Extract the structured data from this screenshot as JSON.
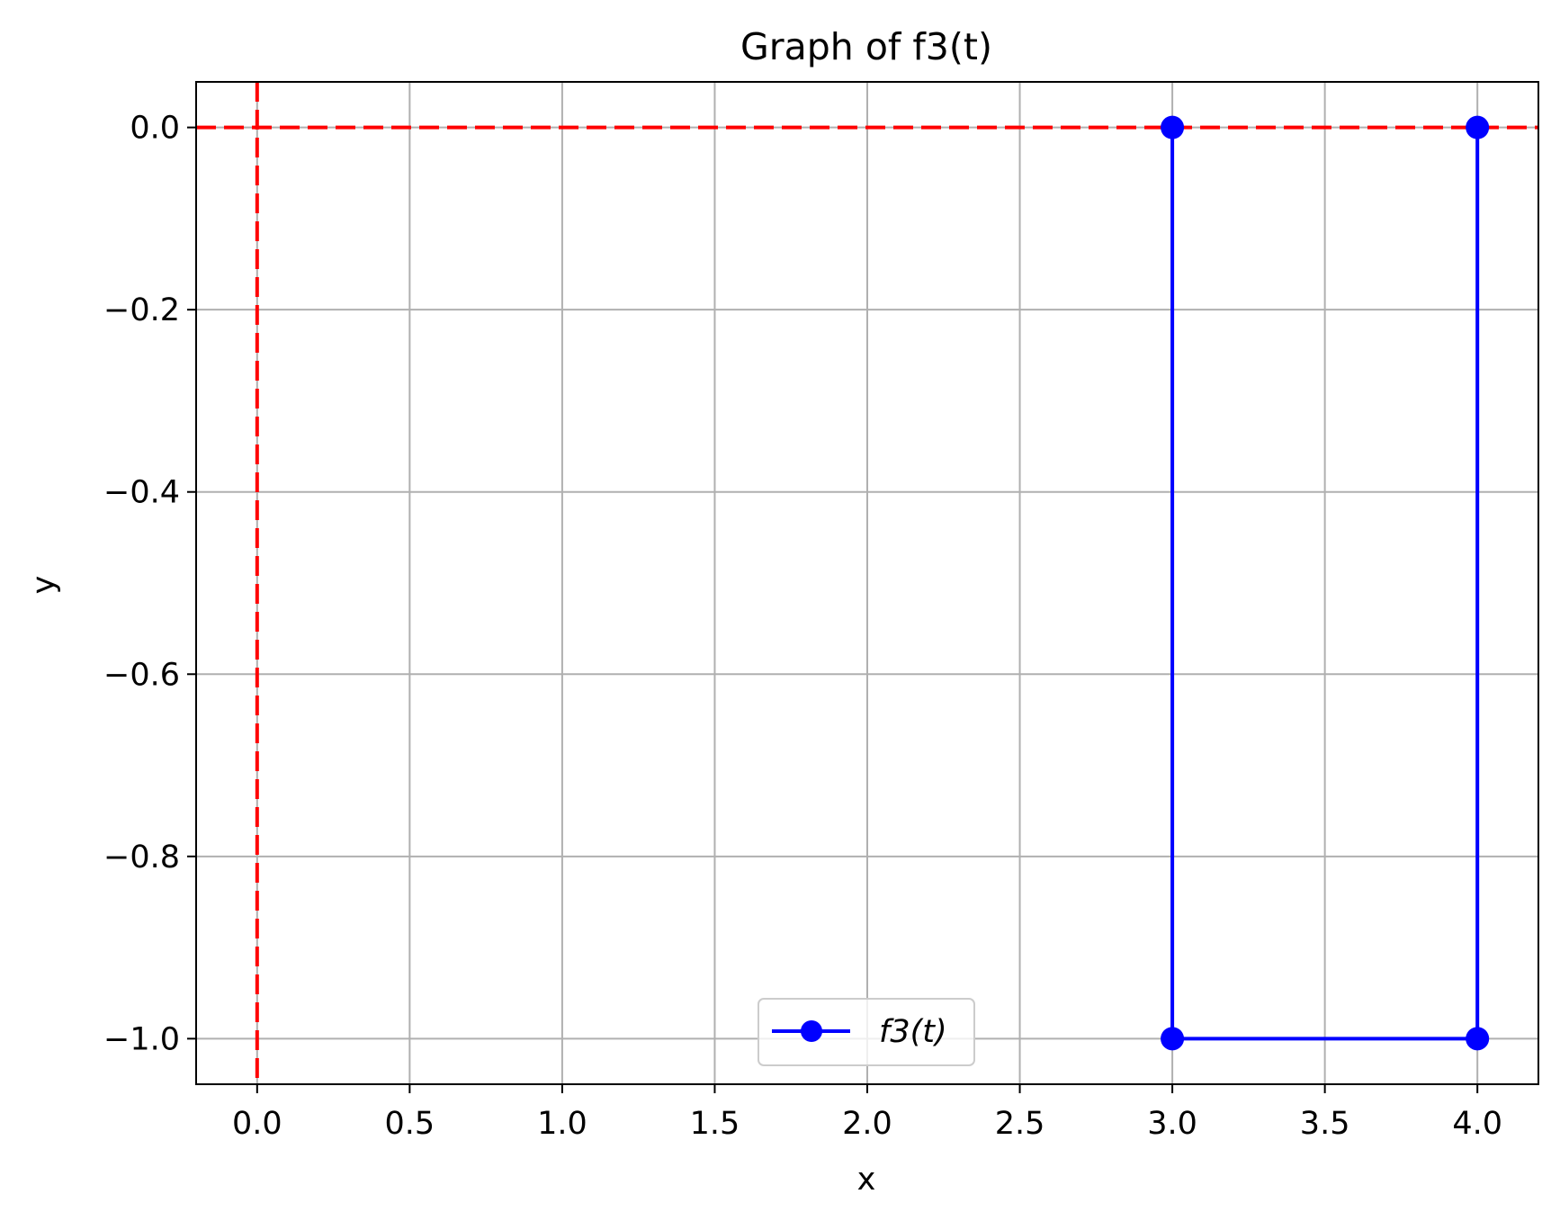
{
  "chart_data": {
    "type": "line",
    "title": "Graph of f3(t)",
    "xlabel": "x",
    "ylabel": "y",
    "xlim": [
      -0.2,
      4.2
    ],
    "ylim": [
      -1.05,
      0.05
    ],
    "x_ticks": [
      0.0,
      0.5,
      1.0,
      1.5,
      2.0,
      2.5,
      3.0,
      3.5,
      4.0
    ],
    "x_tick_labels": [
      "0.0",
      "0.5",
      "1.0",
      "1.5",
      "2.0",
      "2.5",
      "3.0",
      "3.5",
      "4.0"
    ],
    "y_ticks": [
      0.0,
      -0.2,
      -0.4,
      -0.6,
      -0.8,
      -1.0
    ],
    "y_tick_labels": [
      "0.0",
      "−0.2",
      "−0.4",
      "−0.6",
      "−0.8",
      "−1.0"
    ],
    "grid": true,
    "legend_position": "bottom-center",
    "series": [
      {
        "name": "f3(t)",
        "color": "#0000ff",
        "marker": "circle",
        "points": [
          {
            "x": 3.0,
            "y": 0.0
          },
          {
            "x": 3.0,
            "y": -1.0
          },
          {
            "x": 4.0,
            "y": -1.0
          },
          {
            "x": 4.0,
            "y": 0.0
          }
        ]
      }
    ],
    "reference_lines": [
      {
        "orientation": "horizontal",
        "value": 0.0,
        "color": "#ff0000",
        "style": "dashed"
      },
      {
        "orientation": "vertical",
        "value": 0.0,
        "color": "#ff0000",
        "style": "dashed"
      }
    ],
    "colors": {
      "grid": "#b0b0b0",
      "axes": "#000000"
    }
  }
}
